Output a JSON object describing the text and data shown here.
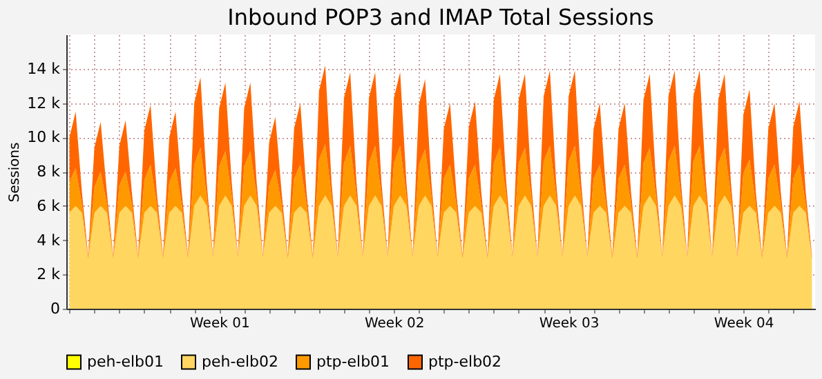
{
  "chart_data": {
    "type": "area",
    "stacked": true,
    "title": "Inbound POP3 and IMAP Total Sessions",
    "ylabel": "Sessions",
    "categories": [
      null,
      null,
      null,
      null,
      null,
      null,
      null,
      null,
      null,
      null,
      null,
      null,
      null,
      null,
      null,
      null,
      null,
      null,
      null,
      null,
      null,
      null,
      null,
      null,
      "Week 01",
      null,
      null,
      null,
      null,
      null,
      null,
      null,
      null,
      null,
      null,
      null,
      null,
      null,
      null,
      null,
      null,
      null,
      null,
      null,
      null,
      null,
      null,
      null,
      null,
      null,
      null,
      null,
      "Week 02",
      null,
      null,
      null,
      null,
      null,
      null,
      null,
      null,
      null,
      null,
      null,
      null,
      null,
      null,
      null,
      null,
      null,
      null,
      null,
      null,
      null,
      null,
      null,
      null,
      null,
      null,
      null,
      "Week 03",
      null,
      null,
      null,
      null,
      null,
      null,
      null,
      null,
      null,
      null,
      null,
      null,
      null,
      null,
      null,
      null,
      null,
      null,
      null,
      null,
      null,
      null,
      null,
      null,
      null,
      null,
      null,
      "Week 04",
      null,
      null,
      null,
      null,
      null,
      null,
      null,
      null,
      null,
      null,
      null
    ],
    "series": [
      {
        "name": "peh-elb01",
        "color": "#ffff00",
        "values": [
          null,
          null,
          null,
          null,
          null,
          null,
          null,
          null,
          null,
          null,
          null,
          null,
          null,
          null,
          null,
          null,
          null,
          null,
          null,
          null,
          null,
          null,
          null,
          null,
          null,
          null,
          null,
          null,
          null,
          null,
          null,
          null,
          null,
          null,
          null,
          null,
          null,
          null,
          null,
          null,
          null,
          null,
          null,
          null,
          null,
          null,
          null,
          null,
          null,
          null,
          null,
          null,
          null,
          null,
          null,
          null,
          null,
          null,
          null,
          null,
          null,
          null,
          null,
          null,
          null,
          null,
          null,
          null,
          null,
          null,
          null,
          null,
          null,
          null,
          null,
          null,
          null,
          null,
          null,
          null,
          null,
          null,
          null,
          null,
          null,
          null,
          null,
          null,
          null,
          null,
          null,
          null,
          null,
          null,
          null,
          null,
          null,
          null,
          null,
          null,
          null,
          null,
          null,
          null,
          null,
          null,
          null,
          null,
          null,
          null,
          null,
          null,
          null,
          null,
          null,
          null,
          null,
          null,
          null,
          null
        ]
      },
      {
        "name": "peh-elb02",
        "color": "#ffd660",
        "values": [
          5600,
          6000,
          5600,
          2900,
          5600,
          6000,
          5600,
          2900,
          5600,
          6000,
          5600,
          2900,
          5600,
          6000,
          5600,
          2900,
          5600,
          6000,
          5600,
          2900,
          6000,
          6600,
          6000,
          3000,
          6000,
          6600,
          6000,
          3000,
          6000,
          6600,
          6000,
          3000,
          5600,
          6000,
          5600,
          2900,
          5600,
          6000,
          5600,
          2900,
          6000,
          6600,
          6000,
          3000,
          6000,
          6600,
          6000,
          3000,
          6000,
          6600,
          6000,
          3000,
          6000,
          6600,
          6000,
          3000,
          6000,
          6600,
          6000,
          3000,
          5600,
          6000,
          5600,
          2900,
          5600,
          6000,
          5600,
          2900,
          6000,
          6600,
          6000,
          3000,
          6000,
          6600,
          6000,
          3000,
          6000,
          6600,
          6000,
          3000,
          6000,
          6600,
          6000,
          3000,
          5600,
          6000,
          5600,
          2900,
          5600,
          6000,
          5600,
          2900,
          6000,
          6600,
          6000,
          3000,
          6000,
          6600,
          6000,
          3000,
          6000,
          6600,
          6000,
          3000,
          6000,
          6600,
          6000,
          3000,
          5600,
          6000,
          5600,
          2900,
          5600,
          6000,
          5600,
          2900,
          5600,
          6000,
          5600,
          2900
        ]
      },
      {
        "name": "ptp-elb01",
        "color": "#ff9900",
        "values": [
          1800,
          2200,
          500,
          100,
          1500,
          2000,
          500,
          100,
          1600,
          2000,
          500,
          100,
          1900,
          2400,
          500,
          100,
          1800,
          2200,
          500,
          100,
          2400,
          2800,
          600,
          0,
          2300,
          2600,
          600,
          0,
          2300,
          2600,
          600,
          0,
          1600,
          2100,
          500,
          100,
          2000,
          2400,
          500,
          100,
          2700,
          3000,
          600,
          0,
          2500,
          2900,
          600,
          0,
          2500,
          2900,
          600,
          0,
          2500,
          2900,
          600,
          0,
          2400,
          2700,
          600,
          0,
          2000,
          2400,
          500,
          100,
          2000,
          2400,
          500,
          100,
          2500,
          2800,
          600,
          0,
          2500,
          2800,
          600,
          0,
          2600,
          2900,
          600,
          0,
          2600,
          2900,
          600,
          0,
          2000,
          2400,
          500,
          100,
          2000,
          2400,
          500,
          100,
          2500,
          2800,
          600,
          0,
          2600,
          2900,
          600,
          0,
          2600,
          2900,
          600,
          0,
          2500,
          2800,
          600,
          0,
          2300,
          2700,
          500,
          100,
          2000,
          2400,
          500,
          100,
          2000,
          2400,
          500,
          100
        ]
      },
      {
        "name": "ptp-elb02",
        "color": "#ff6600",
        "values": [
          2600,
          3300,
          700,
          100,
          2300,
          2900,
          700,
          100,
          2300,
          3000,
          700,
          100,
          2900,
          3500,
          700,
          100,
          2600,
          3300,
          700,
          100,
          3600,
          4100,
          800,
          100,
          3400,
          4000,
          800,
          100,
          3400,
          4000,
          800,
          100,
          2500,
          3100,
          700,
          100,
          2900,
          3600,
          700,
          100,
          4000,
          4600,
          800,
          100,
          3800,
          4300,
          800,
          100,
          3800,
          4300,
          800,
          100,
          3800,
          4300,
          800,
          100,
          3500,
          4100,
          800,
          100,
          2900,
          3600,
          700,
          100,
          3000,
          3700,
          700,
          100,
          3700,
          4300,
          800,
          100,
          3700,
          4300,
          800,
          100,
          3800,
          4400,
          800,
          100,
          3800,
          4400,
          800,
          100,
          2900,
          3600,
          700,
          100,
          2900,
          3600,
          700,
          100,
          3700,
          4300,
          800,
          100,
          3800,
          4400,
          800,
          100,
          3800,
          4400,
          800,
          100,
          3700,
          4300,
          800,
          100,
          3400,
          4100,
          700,
          100,
          2900,
          3600,
          700,
          100,
          3000,
          3700,
          700,
          100
        ]
      }
    ],
    "ylim": [
      0,
      16000
    ],
    "yticks": [
      {
        "value": 0,
        "label": "0"
      },
      {
        "value": 2000,
        "label": "2 k"
      },
      {
        "value": 4000,
        "label": "4 k"
      },
      {
        "value": 6000,
        "label": "6 k"
      },
      {
        "value": 8000,
        "label": "8 k"
      },
      {
        "value": 10000,
        "label": "10 k"
      },
      {
        "value": 12000,
        "label": "12 k"
      },
      {
        "value": 14000,
        "label": "14 k"
      }
    ],
    "grid": true,
    "legend": "bottom"
  }
}
